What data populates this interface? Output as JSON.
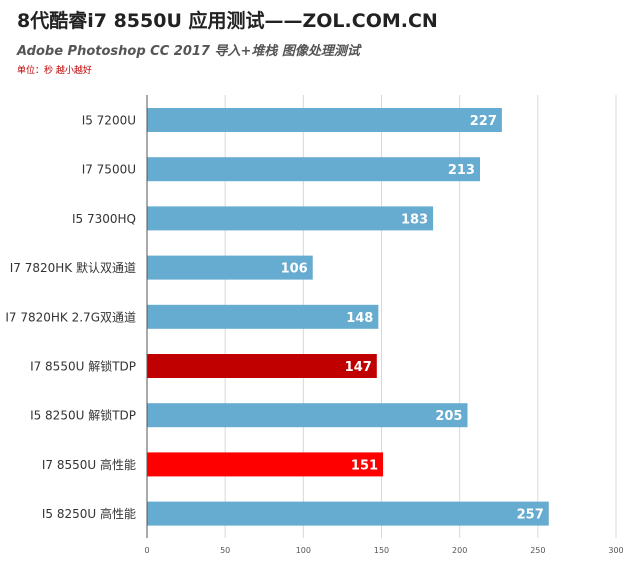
{
  "header": {
    "title": "8代酷睿i7 8550U 应用测试——ZOL.COM.CN",
    "subtitle": "Adobe Photoshop CC 2017 导入+堆栈 图像处理测试",
    "unit_note": "单位：秒 越小越好"
  },
  "colors": {
    "default_bar": "#66abd0",
    "highlight_dark": "#c00000",
    "highlight_bright": "#ff0000",
    "gridline": "#d8d8d8",
    "axis": "#555555",
    "label_text": "#333333",
    "value_text": "#ffffff"
  },
  "chart_data": {
    "type": "bar",
    "orientation": "horizontal",
    "categories": [
      "I5 7200U",
      "I7 7500U",
      "I5 7300HQ",
      "I7 7820HK  默认双通道",
      "I7 7820HK  2.7G双通道",
      "I7 8550U  解锁TDP",
      "I5 8250U  解锁TDP",
      "I7 8550U  高性能",
      "I5 8250U  高性能"
    ],
    "values": [
      227,
      213,
      183,
      106,
      148,
      147,
      205,
      151,
      257
    ],
    "bar_colors": [
      "#66abd0",
      "#66abd0",
      "#66abd0",
      "#66abd0",
      "#66abd0",
      "#c00000",
      "#66abd0",
      "#ff0000",
      "#66abd0"
    ],
    "xlim": [
      0,
      300
    ],
    "xticks": [
      0,
      50,
      100,
      150,
      200,
      250,
      300
    ],
    "grid": true,
    "legend": "none",
    "data_labels": true
  }
}
